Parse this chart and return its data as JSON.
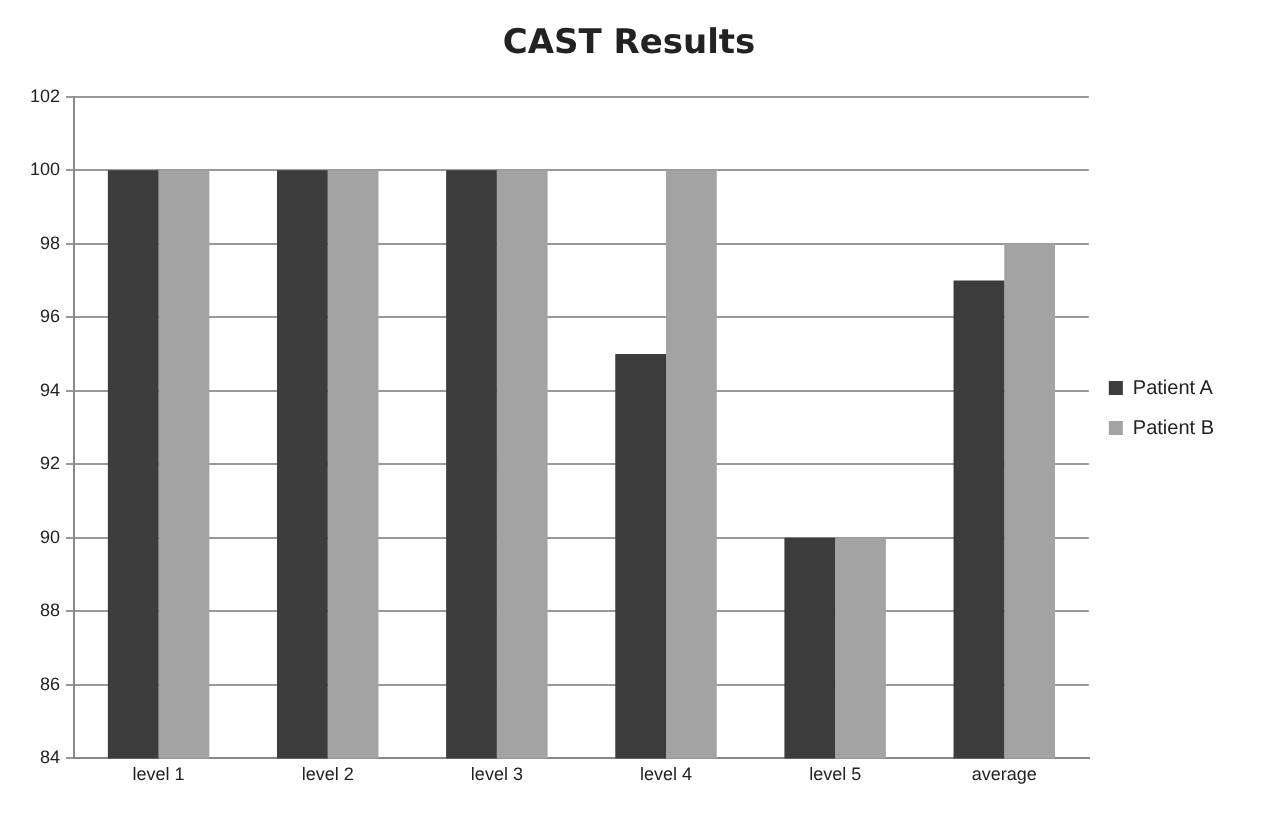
{
  "chart_data": {
    "type": "bar",
    "title": "CAST Results",
    "categories": [
      "level 1",
      "level 2",
      "level 3",
      "level 4",
      "level 5",
      "average"
    ],
    "series": [
      {
        "name": "Patient A",
        "color": "#3c3c3c",
        "values": [
          100,
          100,
          100,
          95,
          90,
          97
        ]
      },
      {
        "name": "Patient B",
        "color": "#a3a3a3",
        "values": [
          100,
          100,
          100,
          100,
          90,
          98
        ]
      }
    ],
    "ylim": [
      84,
      102
    ],
    "yticks": [
      84,
      86,
      88,
      90,
      92,
      94,
      96,
      98,
      100,
      102
    ],
    "grid": "y",
    "legend": "right"
  }
}
